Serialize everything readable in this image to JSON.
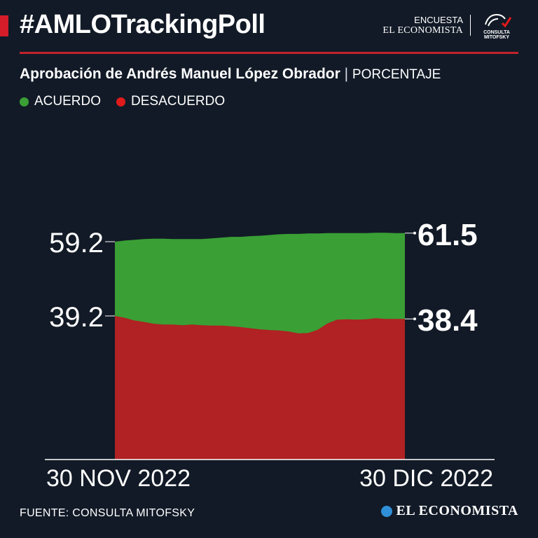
{
  "header": {
    "title": "#AMLOTrackingPoll",
    "brand_line1": "ENCUESTA",
    "brand_line2": "EL ECONOMISTA",
    "partner_logo_text": "CONSULTA MITOFSKY"
  },
  "subtitle": {
    "main": "Aprobación de Andrés Manuel López Obrador",
    "separator": "|",
    "unit": "PORCENTAJE"
  },
  "legend": [
    {
      "label": "ACUERDO",
      "color": "#3a9f35"
    },
    {
      "label": "DESACUERDO",
      "color": "#e01b1b"
    }
  ],
  "footer": {
    "source": "FUENTE: CONSULTA MITOFSKY",
    "brand": "EL ECONOMISTA"
  },
  "chart_data": {
    "type": "area",
    "x_start_label": "30 NOV 2022",
    "x_end_label": "30 DIC 2022",
    "x": [
      "2022-11-30",
      "2022-12-01",
      "2022-12-02",
      "2022-12-03",
      "2022-12-04",
      "2022-12-05",
      "2022-12-06",
      "2022-12-07",
      "2022-12-08",
      "2022-12-09",
      "2022-12-10",
      "2022-12-11",
      "2022-12-12",
      "2022-12-13",
      "2022-12-14",
      "2022-12-15",
      "2022-12-16",
      "2022-12-17",
      "2022-12-18",
      "2022-12-19",
      "2022-12-20",
      "2022-12-21",
      "2022-12-22",
      "2022-12-23",
      "2022-12-24",
      "2022-12-25",
      "2022-12-26",
      "2022-12-27",
      "2022-12-28",
      "2022-12-29",
      "2022-12-30"
    ],
    "series": [
      {
        "name": "ACUERDO",
        "color": "#3a9f35",
        "values": [
          59.2,
          59.5,
          59.7,
          59.9,
          60.0,
          60.0,
          59.9,
          59.9,
          59.9,
          59.9,
          60.1,
          60.3,
          60.5,
          60.5,
          60.7,
          60.8,
          61.0,
          61.2,
          61.3,
          61.3,
          61.4,
          61.4,
          61.5,
          61.5,
          61.5,
          61.5,
          61.5,
          61.6,
          61.6,
          61.5,
          61.5
        ]
      },
      {
        "name": "DESACUERDO",
        "color": "#e01b1b",
        "values": [
          39.2,
          38.7,
          38.0,
          37.6,
          37.1,
          36.9,
          36.9,
          36.7,
          36.9,
          36.7,
          36.6,
          36.6,
          36.4,
          36.2,
          35.9,
          35.6,
          35.4,
          35.3,
          35.0,
          34.5,
          34.6,
          35.5,
          37.2,
          38.2,
          38.3,
          38.2,
          38.3,
          38.6,
          38.4,
          38.4,
          38.4
        ]
      }
    ],
    "start_labels": [
      "59.2",
      "39.2"
    ],
    "end_labels": [
      "61.5",
      "38.4"
    ],
    "grid": false
  }
}
